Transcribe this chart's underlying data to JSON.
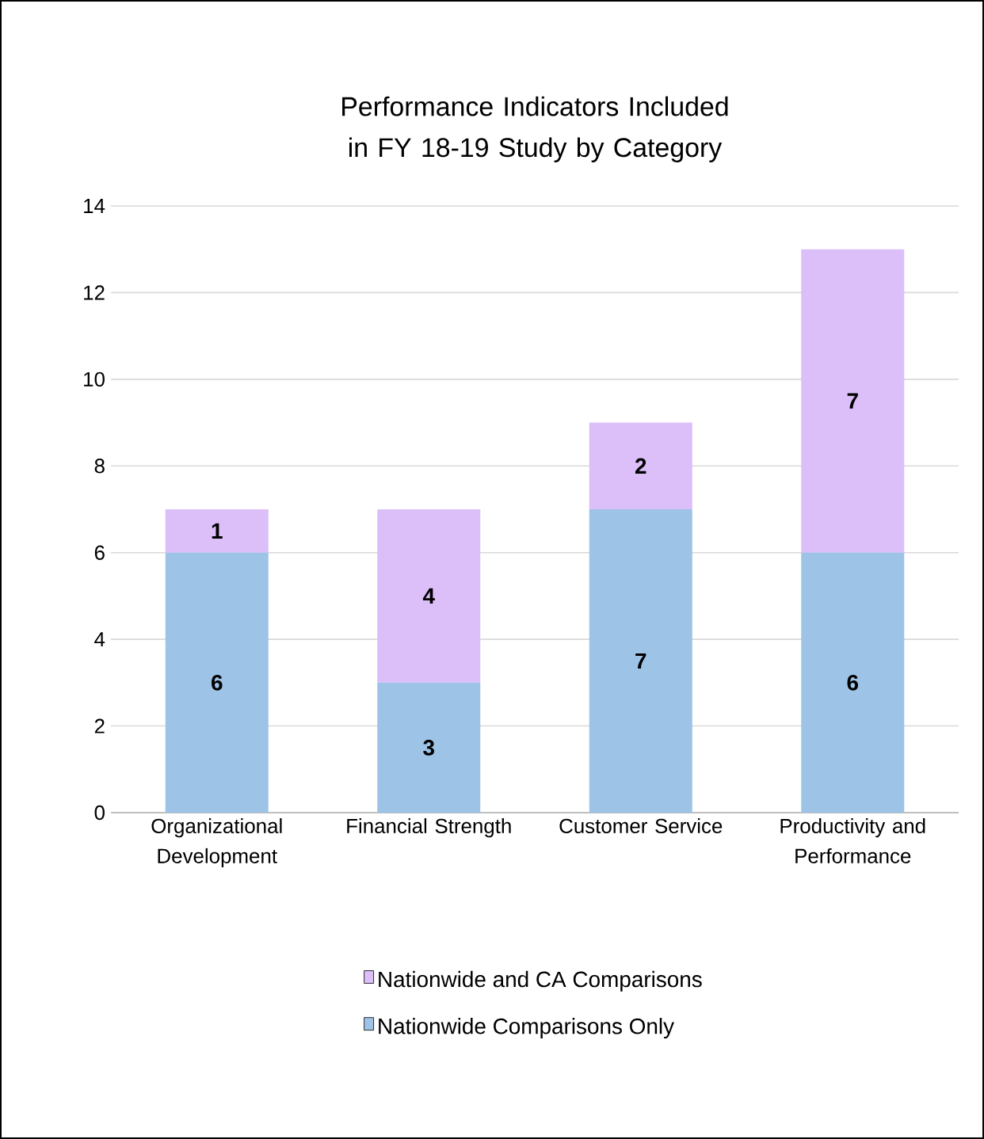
{
  "chart_data": {
    "type": "bar",
    "stacked": true,
    "title": "Performance Indicators Included in FY 18-19 Study by Category",
    "categories": [
      "Organizational Development",
      "Financial Strength",
      "Customer Service",
      "Productivity and Performance"
    ],
    "series": [
      {
        "name": "Nationwide Comparisons Only",
        "color": "#9dc3e6",
        "values": [
          6,
          3,
          7,
          6
        ]
      },
      {
        "name": "Nationwide and CA Comparisons",
        "color": "#dcbef9",
        "values": [
          1,
          4,
          2,
          7
        ]
      }
    ],
    "ylim": [
      0,
      14
    ],
    "yticks": [
      0,
      2,
      4,
      6,
      8,
      10,
      12,
      14
    ],
    "grid": "y",
    "legend": "bottom",
    "data_labels": true
  }
}
